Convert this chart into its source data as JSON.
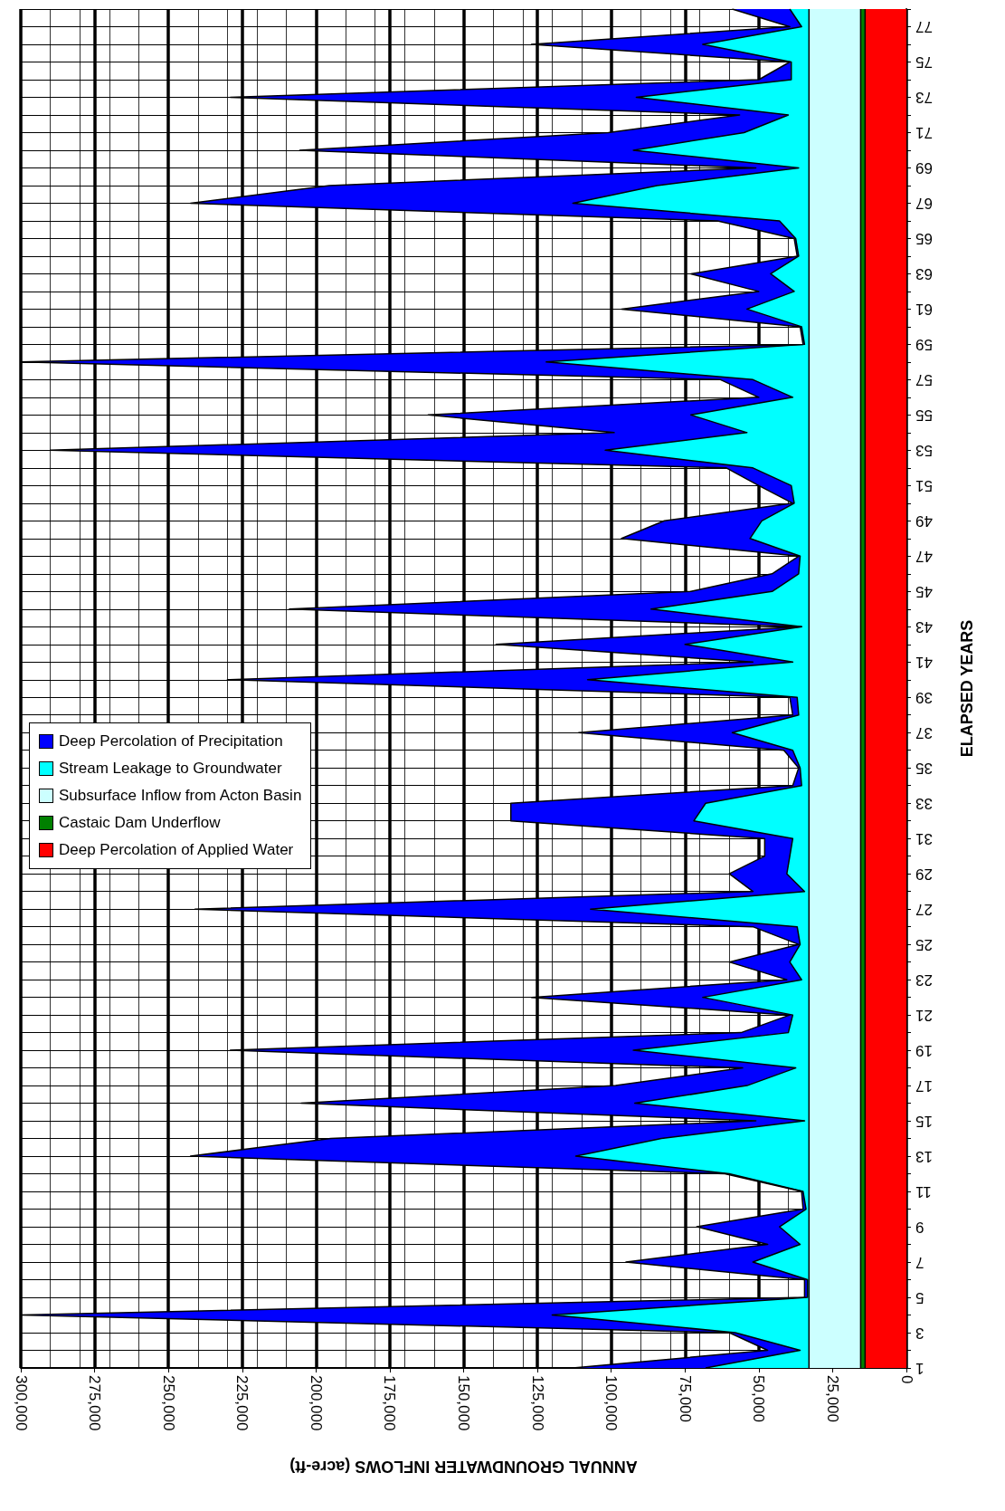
{
  "chart_data": {
    "type": "area",
    "stacked": true,
    "orientation": "horizontal",
    "xlabel": "ANNUAL GROUNDWATER INFLOWS (acre-ft)",
    "ylabel": "ELAPSED YEARS",
    "categories": [
      null,
      "77",
      null,
      "75",
      null,
      "73",
      null,
      "71",
      null,
      "69",
      null,
      "67",
      null,
      "65",
      null,
      "63",
      null,
      "61",
      null,
      "59",
      null,
      "57",
      null,
      "55",
      null,
      "53",
      null,
      "51",
      null,
      "49",
      null,
      "47",
      null,
      "45",
      null,
      "43",
      null,
      "41",
      null,
      "39",
      null,
      "37",
      null,
      "35",
      null,
      "33",
      null,
      "31",
      null,
      "29",
      null,
      "27",
      null,
      "25",
      null,
      "23",
      null,
      "21",
      null,
      "19",
      null,
      "17",
      null,
      "15",
      null,
      "13",
      null,
      "11",
      null,
      "9",
      null,
      "7",
      null,
      "5",
      null,
      "3",
      null,
      "1"
    ],
    "xlim": [
      300000,
      0
    ],
    "xticks": [
      {
        "value": 300000,
        "label": "300,000"
      },
      {
        "value": 275000,
        "label": "275,000"
      },
      {
        "value": 250000,
        "label": "250,000"
      },
      {
        "value": 225000,
        "label": "225,000"
      },
      {
        "value": 200000,
        "label": "200,000"
      },
      {
        "value": 175000,
        "label": "175,000"
      },
      {
        "value": 150000,
        "label": "150,000"
      },
      {
        "value": 125000,
        "label": "125,000"
      },
      {
        "value": 100000,
        "label": "100,000"
      },
      {
        "value": 75000,
        "label": "75,000"
      },
      {
        "value": 50000,
        "label": "50,000"
      },
      {
        "value": 25000,
        "label": "25,000"
      },
      {
        "value": 0,
        "label": "0"
      }
    ],
    "grid": true,
    "legend": "left",
    "series": [
      {
        "name": "Deep Percolation of Applied Water",
        "color": "#ff0000",
        "values": [
          14000,
          14000,
          14000,
          14000,
          14000,
          14000,
          14000,
          14000,
          14000,
          14000,
          14000,
          14000,
          14000,
          14000,
          14000,
          14000,
          14000,
          14000,
          14000,
          14000,
          14000,
          14000,
          14000,
          14000,
          14000,
          14000,
          14000,
          14000,
          14000,
          14000,
          14000,
          14000,
          14000,
          14000,
          14000,
          14000,
          14000,
          14000,
          14000,
          14000,
          14000,
          14000,
          14000,
          14000,
          14000,
          14000,
          14000,
          14000,
          14000,
          14000,
          14000,
          14000,
          14000,
          14000,
          14000,
          14000,
          14000,
          14000,
          14000,
          14000,
          14000,
          14000,
          14000,
          14000,
          14000,
          14000,
          14000,
          14000,
          14000,
          14000,
          14000,
          14000,
          14000,
          14000,
          14000,
          14000,
          14000,
          14000
        ]
      },
      {
        "name": "Castaic Dam Underflow",
        "color": "#008000",
        "values": [
          1500,
          1500,
          1500,
          1500,
          1500,
          1500,
          1500,
          1500,
          1500,
          1500,
          1500,
          1500,
          1500,
          1500,
          1500,
          1500,
          1500,
          1500,
          1500,
          1500,
          1500,
          1500,
          1500,
          1500,
          1500,
          1500,
          1500,
          1500,
          1500,
          1500,
          1500,
          1500,
          1500,
          1500,
          1500,
          1500,
          1500,
          1500,
          1500,
          1500,
          1500,
          1500,
          1500,
          1500,
          1500,
          1500,
          1500,
          1500,
          1500,
          1500,
          1500,
          1500,
          1500,
          1500,
          1500,
          1500,
          1500,
          1500,
          1500,
          1500,
          1500,
          1500,
          1500,
          1500,
          1500,
          1500,
          1500,
          1500,
          1500,
          1500,
          1500,
          1500,
          1500,
          1500,
          1500,
          1500,
          1500,
          1500
        ]
      },
      {
        "name": "Subsurface Inflow from Acton Basin",
        "color": "#ccffff",
        "values": [
          17500,
          17500,
          17500,
          17500,
          17500,
          17500,
          17500,
          17500,
          17500,
          17500,
          17500,
          17500,
          17500,
          17500,
          17500,
          17500,
          17500,
          17500,
          17500,
          17500,
          17500,
          17500,
          17500,
          17500,
          17500,
          17500,
          17500,
          17500,
          17500,
          17500,
          17500,
          17500,
          17500,
          17500,
          17500,
          17500,
          17500,
          17500,
          17500,
          17500,
          17500,
          17500,
          17500,
          17500,
          17500,
          17500,
          17500,
          17500,
          17500,
          17500,
          17500,
          17500,
          17500,
          17500,
          17500,
          17500,
          17500,
          17500,
          17500,
          17500,
          17500,
          17500,
          17500,
          17500,
          17500,
          17500,
          17500,
          17500,
          17500,
          17500,
          17500,
          17500,
          17500,
          17500,
          17500,
          17500,
          17500,
          17500
        ]
      },
      {
        "name": "Stream Leakage to Groundwater",
        "color": "#00ffff",
        "values": [
          6500,
          2500,
          36000,
          6000,
          6000,
          58500,
          7000,
          22000,
          59500,
          3500,
          51500,
          80000,
          10000,
          4500,
          3500,
          13000,
          5000,
          21000,
          2500,
          1500,
          89000,
          19000,
          5500,
          40000,
          21000,
          69000,
          19000,
          6000,
          5000,
          16000,
          20000,
          3000,
          3500,
          12500,
          53500,
          2500,
          42000,
          5500,
          75000,
          4000,
          3500,
          26000,
          5500,
          3000,
          2500,
          35000,
          39000,
          5500,
          6500,
          7500,
          1500,
          74000,
          4000,
          3000,
          6500,
          2500,
          36000,
          5500,
          7000,
          59500,
          4500,
          21000,
          59000,
          1500,
          50000,
          79000,
          27000,
          2000,
          1000,
          10000,
          3000,
          19000,
          500,
          500,
          87000,
          25000,
          3000,
          35000
        ]
      },
      {
        "name": "Deep Percolation of Precipitation",
        "color": "#0000ff",
        "values": [
          19500,
          4000,
          58000,
          500,
          11000,
          137500,
          16500,
          46000,
          113000,
          14500,
          111000,
          129500,
          21000,
          500,
          500,
          27000,
          12000,
          42500,
          500,
          500,
          178000,
          11000,
          11500,
          89000,
          45000,
          188000,
          9000,
          11000,
          500,
          33000,
          43500,
          500,
          9000,
          27500,
          122500,
          0,
          64000,
          13500,
          122000,
          2500,
          2000,
          52000,
          3000,
          500,
          3000,
          66000,
          62000,
          9500,
          8500,
          19500,
          17500,
          134000,
          15000,
          500,
          20500,
          5000,
          58000,
          1000,
          16000,
          136500,
          18000,
          44500,
          113000,
          16500,
          112000,
          130500,
          1500,
          500,
          1000,
          28000,
          11000,
          43000,
          1000,
          1000,
          180000,
          2000,
          11000,
          45000
        ]
      }
    ]
  }
}
